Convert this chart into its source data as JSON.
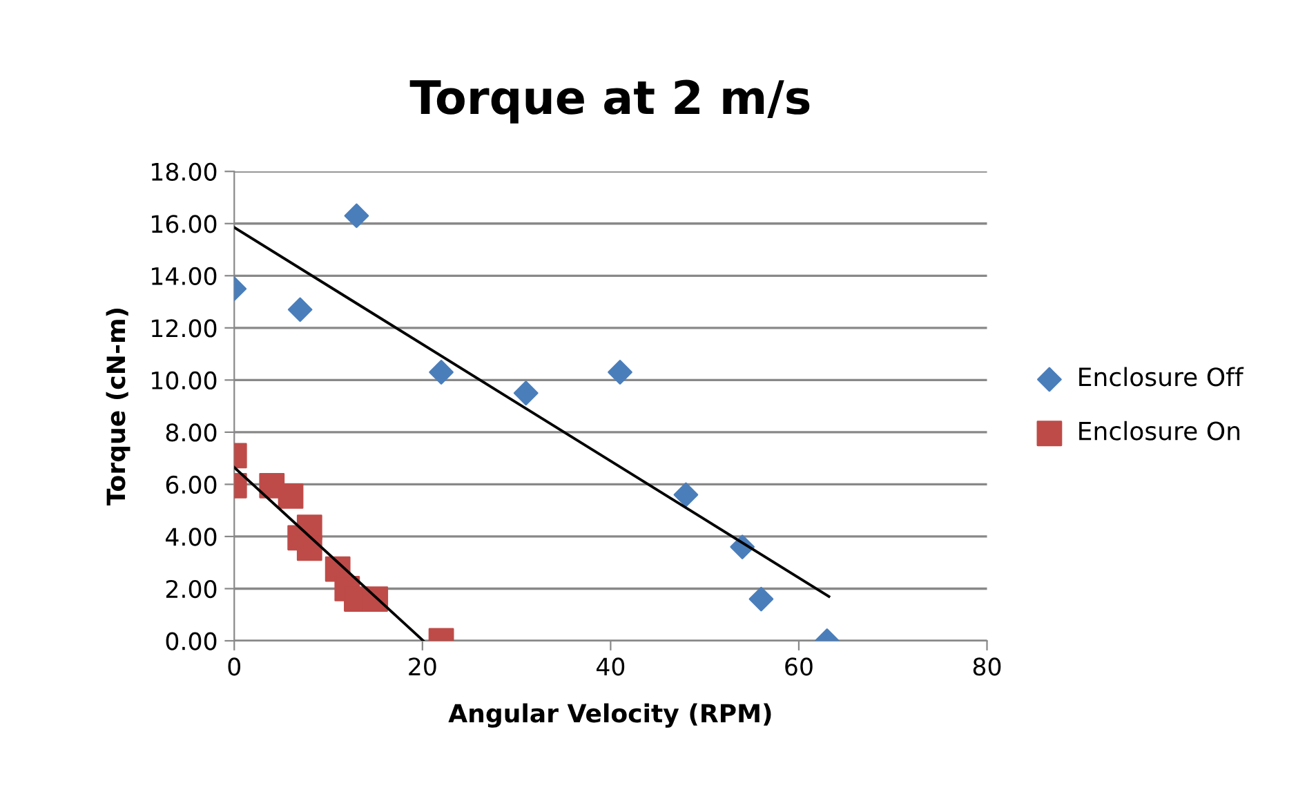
{
  "chart_data": {
    "type": "scatter",
    "title": "Torque at 2 m/s",
    "xlabel": "Angular Velocity (RPM)",
    "ylabel": "Torque (cN-m)",
    "xlim": [
      0,
      80
    ],
    "xticks": [
      0,
      20,
      40,
      60,
      80
    ],
    "ylim": [
      0,
      18
    ],
    "yticks": [
      {
        "value": 0,
        "label": "0.00"
      },
      {
        "value": 2,
        "label": "2.00"
      },
      {
        "value": 4,
        "label": "4.00"
      },
      {
        "value": 6,
        "label": "6.00"
      },
      {
        "value": 8,
        "label": "8.00"
      },
      {
        "value": 10,
        "label": "10.00"
      },
      {
        "value": 12,
        "label": "12.00"
      },
      {
        "value": 14,
        "label": "14.00"
      },
      {
        "value": 16,
        "label": "16.00"
      },
      {
        "value": 18,
        "label": "18.00"
      }
    ],
    "grid": "y",
    "legend": "right",
    "series": [
      {
        "name": "Enclosure Off",
        "color": "#4a7ebb",
        "marker": "diamond",
        "x": [
          0,
          7,
          13,
          22,
          31,
          41,
          48,
          54,
          56,
          63
        ],
        "values": [
          13.5,
          12.7,
          16.3,
          10.3,
          9.5,
          10.3,
          5.6,
          3.6,
          1.6,
          0
        ]
      },
      {
        "name": "Enclosure On",
        "color": "#be4b48",
        "marker": "square",
        "x": [
          0,
          0,
          4,
          6,
          7,
          8,
          8,
          11,
          12,
          13,
          15,
          22
        ],
        "values": [
          7.1,
          5.95,
          5.95,
          5.55,
          3.95,
          4.35,
          3.55,
          2.75,
          2.0,
          1.6,
          1.6,
          0
        ]
      },
      {
        "type": "line",
        "color": "#000000",
        "x": [
          0,
          63.2
        ],
        "values": [
          15.85,
          1.7
        ]
      },
      {
        "type": "line",
        "color": "#000000",
        "x": [
          0,
          20.1
        ],
        "values": [
          6.65,
          0
        ]
      }
    ]
  }
}
